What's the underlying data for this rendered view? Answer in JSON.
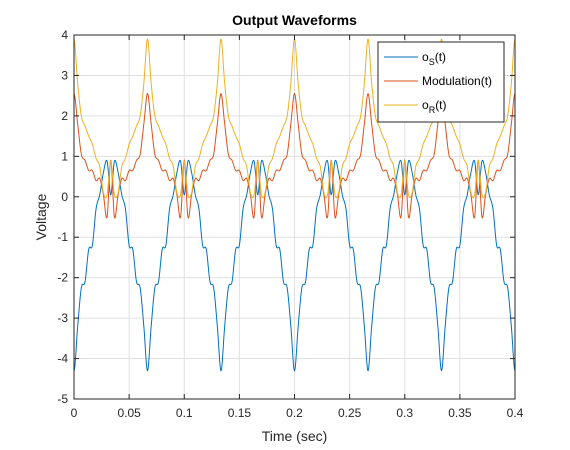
{
  "chart_data": {
    "type": "line",
    "title": "Output Waveforms",
    "xlabel": "Time (sec)",
    "ylabel": "Voltage",
    "xlim": [
      0,
      0.4
    ],
    "ylim": [
      -5,
      4
    ],
    "x_ticks": [
      0,
      0.05,
      0.1,
      0.15,
      0.2,
      0.25,
      0.3,
      0.35,
      0.4
    ],
    "x_tick_labels": [
      "0",
      "0.05",
      "0.1",
      "0.15",
      "0.2",
      "0.25",
      "0.3",
      "0.35",
      "0.4"
    ],
    "y_ticks": [
      -5,
      -4,
      -3,
      -2,
      -1,
      0,
      1,
      2,
      3,
      4
    ],
    "y_tick_labels": [
      "-5",
      "-4",
      "-3",
      "-2",
      "-1",
      "0",
      "1",
      "2",
      "3",
      "4"
    ],
    "grid": true,
    "legend_position": "top-right",
    "series": [
      {
        "name": "os(t)",
        "label_base": "o",
        "label_sub": "S",
        "label_suffix": "(t)",
        "color": "#0072BD",
        "x": [
          0,
          0.00333,
          0.00667,
          0.01,
          0.01333,
          0.01667,
          0.02,
          0.02333,
          0.02667,
          0.03,
          0.03333,
          0.03667,
          0.04,
          0.04333,
          0.04667,
          0.05,
          0.05333,
          0.05667,
          0.06,
          0.06333,
          0.06667
        ],
        "y": [
          -4.3,
          -3.2,
          -2.25,
          -2.1,
          -1.3,
          -1.2,
          -0.3,
          0.05,
          0.6,
          0.88,
          0.05,
          0.88,
          0.6,
          0.05,
          -0.3,
          -1.2,
          -1.3,
          -2.1,
          -2.25,
          -3.2,
          -4.3
        ],
        "period": 0.06667
      },
      {
        "name": "Modulation(t)",
        "color": "#D95319",
        "x": [
          0,
          0.00333,
          0.00667,
          0.01,
          0.01333,
          0.01667,
          0.02,
          0.02333,
          0.02667,
          0.03,
          0.03333,
          0.03667,
          0.04,
          0.04333,
          0.04667,
          0.05,
          0.05333,
          0.05667,
          0.06,
          0.06333,
          0.06667
        ],
        "y": [
          2.55,
          1.8,
          1.05,
          0.9,
          0.65,
          0.65,
          0.4,
          0.45,
          0.05,
          -0.5,
          0.9,
          -0.5,
          0.05,
          0.45,
          0.4,
          0.65,
          0.65,
          0.9,
          1.05,
          1.8,
          2.55
        ],
        "period": 0.06667
      },
      {
        "name": "oR(t)",
        "label_base": "o",
        "label_sub": "R",
        "label_suffix": "(t)",
        "color": "#EDB120",
        "x": [
          0,
          0.00333,
          0.00667,
          0.01,
          0.01333,
          0.01667,
          0.02,
          0.02333,
          0.02667,
          0.03,
          0.03333,
          0.03667,
          0.04,
          0.04333,
          0.04667,
          0.05,
          0.05333,
          0.05667,
          0.06,
          0.06333,
          0.06667
        ],
        "y": [
          3.9,
          2.8,
          2.0,
          1.75,
          1.5,
          1.3,
          0.95,
          0.75,
          0.1,
          0.05,
          0.88,
          0.05,
          0.1,
          0.75,
          0.95,
          1.3,
          1.5,
          1.75,
          2.0,
          2.8,
          3.9
        ],
        "period": 0.06667
      }
    ]
  }
}
